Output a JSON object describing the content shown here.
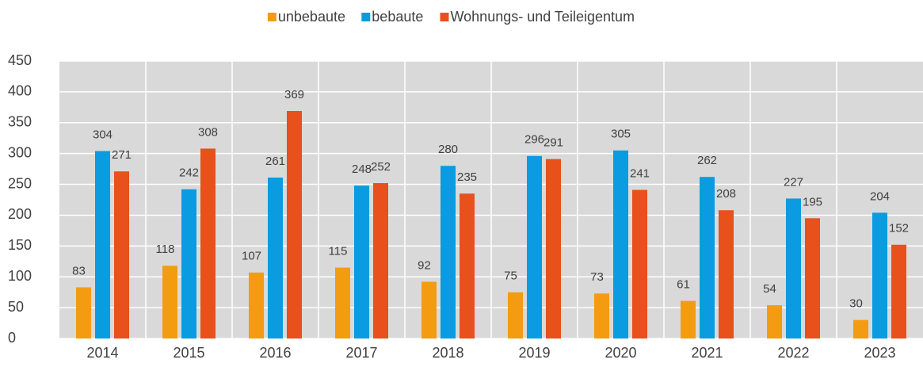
{
  "chart_data": {
    "type": "bar",
    "categories": [
      "2014",
      "2015",
      "2016",
      "2017",
      "2018",
      "2019",
      "2020",
      "2021",
      "2022",
      "2023"
    ],
    "series": [
      {
        "name": "unbebaute",
        "color": "#f39c12",
        "values": [
          83,
          118,
          107,
          115,
          92,
          75,
          73,
          61,
          54,
          30
        ]
      },
      {
        "name": "bebaute",
        "color": "#0a9be0",
        "values": [
          304,
          242,
          261,
          248,
          280,
          296,
          305,
          262,
          227,
          204
        ]
      },
      {
        "name": "Wohnungs- und Teileigentum",
        "color": "#e8501c",
        "values": [
          271,
          308,
          369,
          252,
          235,
          291,
          241,
          208,
          195,
          152
        ]
      }
    ],
    "ylim": [
      0,
      450
    ],
    "yticks": [
      0,
      50,
      100,
      150,
      200,
      250,
      300,
      350,
      400,
      450
    ],
    "grid": true,
    "legend": "top"
  }
}
